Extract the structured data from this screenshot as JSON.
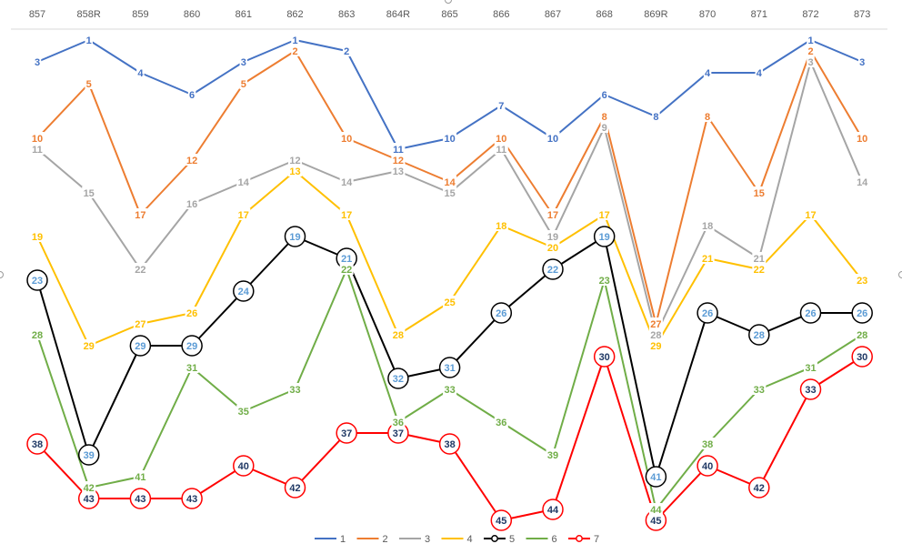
{
  "chart_data": {
    "type": "line",
    "categories": [
      "857",
      "858R",
      "859",
      "860",
      "861",
      "862",
      "863",
      "864R",
      "865",
      "866",
      "867",
      "868",
      "869R",
      "870",
      "871",
      "872",
      "873"
    ],
    "ylim": [
      0,
      47
    ],
    "y_inverted": true,
    "grid": false,
    "legend_position": "bottom",
    "series": [
      {
        "name": "1",
        "color": "#4472C4",
        "marker": "none",
        "values": [
          3,
          1,
          4,
          6,
          3,
          1,
          2,
          11,
          10,
          7,
          10,
          6,
          8,
          4,
          4,
          1,
          3
        ]
      },
      {
        "name": "2",
        "color": "#ED7D31",
        "marker": "none",
        "values": [
          10,
          5,
          17,
          12,
          5,
          2,
          10,
          12,
          14,
          10,
          17,
          8,
          27,
          8,
          15,
          2,
          10
        ]
      },
      {
        "name": "3",
        "color": "#A5A5A5",
        "marker": "none",
        "values": [
          11,
          15,
          22,
          16,
          14,
          12,
          14,
          13,
          15,
          11,
          19,
          9,
          28,
          18,
          21,
          3,
          14
        ]
      },
      {
        "name": "4",
        "color": "#FFC000",
        "marker": "none",
        "values": [
          19,
          29,
          27,
          26,
          17,
          13,
          17,
          28,
          25,
          18,
          20,
          17,
          29,
          21,
          22,
          17,
          23
        ]
      },
      {
        "name": "5",
        "color": "#000000",
        "marker": "circle",
        "label_color": "#5B9BD5",
        "values": [
          23,
          39,
          29,
          29,
          24,
          19,
          21,
          32,
          31,
          26,
          22,
          19,
          41,
          26,
          28,
          26,
          26
        ]
      },
      {
        "name": "6",
        "color": "#70AD47",
        "marker": "none",
        "values": [
          28,
          42,
          41,
          31,
          35,
          33,
          22,
          36,
          33,
          36,
          39,
          23,
          44,
          38,
          33,
          31,
          28
        ]
      },
      {
        "name": "7",
        "color": "#FF0000",
        "marker": "circle",
        "label_color": "#1F3864",
        "values": [
          38,
          43,
          43,
          43,
          40,
          42,
          37,
          37,
          38,
          45,
          44,
          30,
          45,
          40,
          42,
          33,
          30
        ]
      }
    ]
  }
}
